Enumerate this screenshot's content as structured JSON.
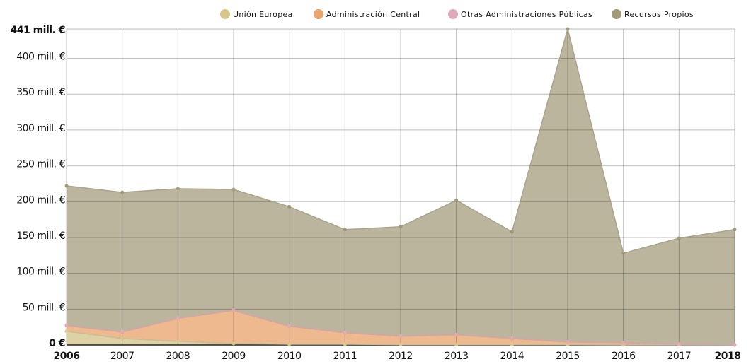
{
  "chart_data": {
    "type": "stacked_area",
    "categories": [
      "2006",
      "2007",
      "2008",
      "2009",
      "2010",
      "2011",
      "2012",
      "2013",
      "2014",
      "2015",
      "2016",
      "2017",
      "2018"
    ],
    "series": [
      {
        "name": "Unión Europea",
        "color": "#d8c78a",
        "fill": "#dcd2a6",
        "values": [
          19,
          9,
          5,
          2,
          1,
          1,
          0.5,
          0.5,
          0.5,
          0.5,
          0.3,
          0.2,
          0
        ]
      },
      {
        "name": "Administración Central",
        "color": "#eba46c",
        "fill": "#efb98f",
        "values": [
          8,
          9,
          32,
          46,
          25,
          16,
          11.5,
          13.5,
          8.5,
          3.5,
          2.7,
          0.8,
          0
        ]
      },
      {
        "name": "Otras Administraciones Públicas",
        "color": "#e0aab8",
        "fill": "#e6b9c2",
        "values": [
          0.5,
          0.5,
          0.5,
          0.5,
          0.5,
          0.5,
          0.5,
          0.5,
          0.5,
          0.5,
          0.5,
          0.3,
          0.2
        ]
      },
      {
        "name": "Recursos Propios",
        "color": "#a09a78",
        "fill": "#bbb59d",
        "values": [
          194.5,
          194.5,
          180.5,
          168.5,
          166.5,
          143.5,
          152.5,
          187.5,
          148.5,
          436.5,
          124.5,
          147.7,
          160.8
        ]
      }
    ],
    "ylim": [
      0,
      441
    ],
    "yticks": [
      {
        "value": 0,
        "label": "0 €"
      },
      {
        "value": 50,
        "label": "50 mill. €"
      },
      {
        "value": 100,
        "label": "100 mill. €"
      },
      {
        "value": 150,
        "label": "150 mill. €"
      },
      {
        "value": 200,
        "label": "200 mill. €"
      },
      {
        "value": 250,
        "label": "250 mill. €"
      },
      {
        "value": 300,
        "label": "300 mill. €"
      },
      {
        "value": 350,
        "label": "350 mill. €"
      },
      {
        "value": 400,
        "label": "400 mill. €"
      },
      {
        "value": 441,
        "label": "441 mill. €"
      }
    ],
    "grid": true,
    "legend": "top"
  }
}
